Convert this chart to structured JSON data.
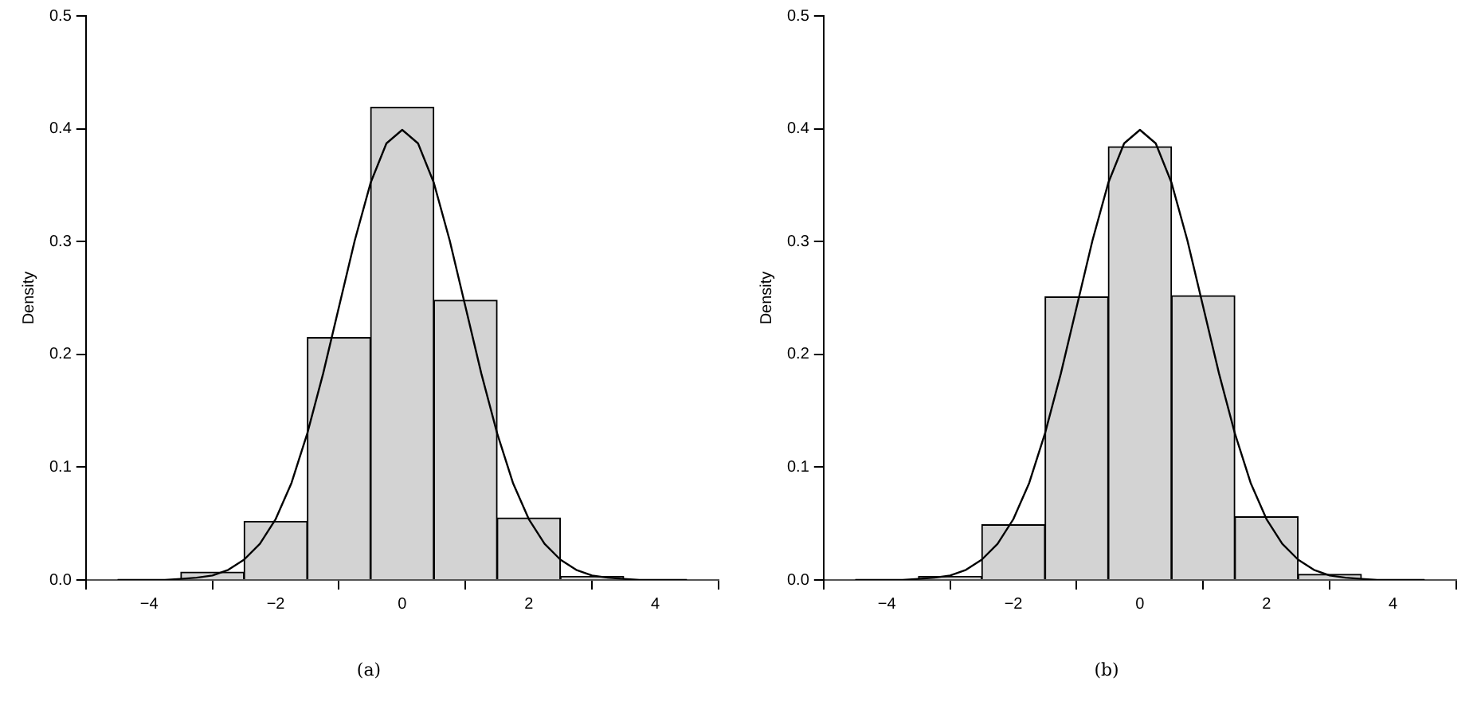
{
  "chart_data": [
    {
      "type": "histogram",
      "ylabel": "Density",
      "bins": [
        -4.5,
        -3.5,
        -2.5,
        -1.5,
        -0.5,
        0.5,
        1.5,
        2.5,
        3.5,
        4.5
      ],
      "xlim": [
        -5,
        5
      ],
      "ylim": [
        0,
        0.5
      ],
      "xticks": [
        -4,
        -2,
        0,
        2,
        4
      ],
      "yticks": [
        {
          "value": 0,
          "label": "0.0"
        },
        {
          "value": 0.1,
          "label": "0.1"
        },
        {
          "value": 0.2,
          "label": "0.2"
        },
        {
          "value": 0.3,
          "label": "0.3"
        },
        {
          "value": 0.4,
          "label": "0.4"
        },
        {
          "value": 0.5,
          "label": "0.5"
        }
      ],
      "series": [
        {
          "type": "histogram",
          "color": "#d3d3d3",
          "values": [
            0,
            0.007,
            0.052,
            0.215,
            0.419,
            0.248,
            0.055,
            0.003,
            0
          ]
        },
        {
          "type": "line",
          "color": "#000000",
          "x": [
            -4.5,
            -4.25,
            -4,
            -3.75,
            -3.5,
            -3.25,
            -3,
            -2.75,
            -2.5,
            -2.25,
            -2,
            -1.75,
            -1.5,
            -1.25,
            -1,
            -0.75,
            -0.5,
            -0.25,
            0,
            0.25,
            0.5,
            0.75,
            1,
            1.25,
            1.5,
            1.75,
            2,
            2.25,
            2.5,
            2.75,
            3,
            3.25,
            3.5,
            3.75,
            4,
            4.25,
            4.5
          ],
          "values": [
            0,
            0,
            0,
            0,
            0.001,
            0.002,
            0.004,
            0.009,
            0.018,
            0.032,
            0.054,
            0.086,
            0.13,
            0.183,
            0.242,
            0.301,
            0.352,
            0.387,
            0.399,
            0.387,
            0.352,
            0.301,
            0.242,
            0.183,
            0.13,
            0.086,
            0.054,
            0.032,
            0.018,
            0.009,
            0.004,
            0.002,
            0.001,
            0,
            0,
            0,
            0
          ]
        }
      ],
      "annotations": [
        "(a)"
      ]
    },
    {
      "type": "histogram",
      "ylabel": "Density",
      "bins": [
        -4.5,
        -3.5,
        -2.5,
        -1.5,
        -0.5,
        0.5,
        1.5,
        2.5,
        3.5,
        4.5
      ],
      "xlim": [
        -5,
        5
      ],
      "ylim": [
        0,
        0.5
      ],
      "xticks": [
        -4,
        -2,
        0,
        2,
        4
      ],
      "yticks": [
        {
          "value": 0,
          "label": "0.0"
        },
        {
          "value": 0.1,
          "label": "0.1"
        },
        {
          "value": 0.2,
          "label": "0.2"
        },
        {
          "value": 0.3,
          "label": "0.3"
        },
        {
          "value": 0.4,
          "label": "0.4"
        },
        {
          "value": 0.5,
          "label": "0.5"
        }
      ],
      "series": [
        {
          "type": "histogram",
          "color": "#d3d3d3",
          "values": [
            0,
            0.003,
            0.049,
            0.251,
            0.384,
            0.252,
            0.056,
            0.005,
            0
          ]
        },
        {
          "type": "line",
          "color": "#000000",
          "x": [
            -4.5,
            -4.25,
            -4,
            -3.75,
            -3.5,
            -3.25,
            -3,
            -2.75,
            -2.5,
            -2.25,
            -2,
            -1.75,
            -1.5,
            -1.25,
            -1,
            -0.75,
            -0.5,
            -0.25,
            0,
            0.25,
            0.5,
            0.75,
            1,
            1.25,
            1.5,
            1.75,
            2,
            2.25,
            2.5,
            2.75,
            3,
            3.25,
            3.5,
            3.75,
            4,
            4.25,
            4.5
          ],
          "values": [
            0,
            0,
            0,
            0,
            0.001,
            0.002,
            0.004,
            0.009,
            0.018,
            0.032,
            0.054,
            0.086,
            0.13,
            0.183,
            0.242,
            0.301,
            0.352,
            0.387,
            0.399,
            0.387,
            0.352,
            0.301,
            0.242,
            0.183,
            0.13,
            0.086,
            0.054,
            0.032,
            0.018,
            0.009,
            0.004,
            0.002,
            0.001,
            0,
            0,
            0,
            0
          ]
        }
      ],
      "annotations": [
        "(b)"
      ]
    }
  ]
}
